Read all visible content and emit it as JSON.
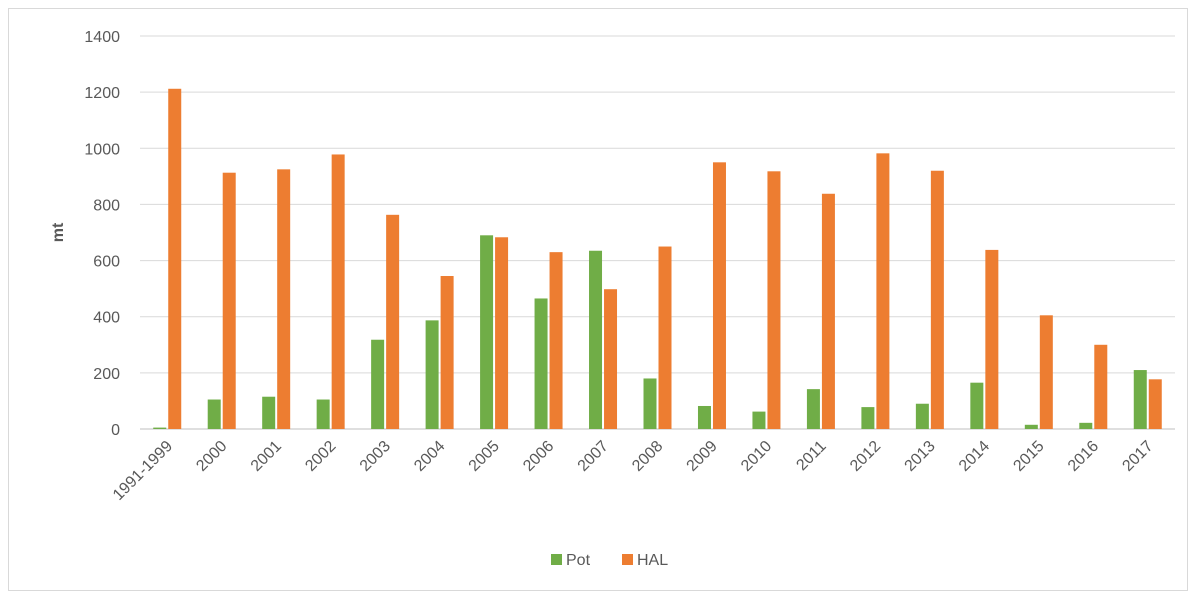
{
  "chart_data": {
    "type": "bar",
    "title": "",
    "xlabel": "",
    "ylabel": "mt",
    "ylim": [
      0,
      1400
    ],
    "yticks": [
      0,
      200,
      400,
      600,
      800,
      1000,
      1200,
      1400
    ],
    "grid": true,
    "legend_position": "bottom",
    "categories": [
      "1991-1999",
      "2000",
      "2001",
      "2002",
      "2003",
      "2004",
      "2005",
      "2006",
      "2007",
      "2008",
      "2009",
      "2010",
      "2011",
      "2012",
      "2013",
      "2014",
      "2015",
      "2016",
      "2017"
    ],
    "series": [
      {
        "name": "Pot",
        "color": "#70ad47",
        "values": [
          5,
          105,
          115,
          105,
          318,
          387,
          690,
          465,
          635,
          180,
          82,
          62,
          142,
          78,
          90,
          165,
          15,
          22,
          210
        ]
      },
      {
        "name": "HAL",
        "color": "#ed7d31",
        "values": [
          1212,
          913,
          925,
          978,
          763,
          545,
          683,
          630,
          498,
          650,
          950,
          918,
          838,
          982,
          920,
          638,
          405,
          300,
          177
        ]
      }
    ]
  }
}
